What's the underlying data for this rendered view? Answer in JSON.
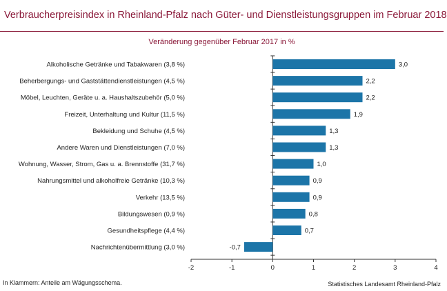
{
  "header": {
    "title": "Verbraucherpreisindex in Rheinland-Pfalz nach Güter- und Dienstleistungsgruppen im Februar 2018"
  },
  "footer": {
    "note": "In Klammern: Anteile am Wägungsschema.",
    "source": "Statistisches Landesamt Rheinland-Pfalz"
  },
  "colors": {
    "bar": "#1c75a8",
    "accent": "#8b1a3a"
  },
  "chart_data": {
    "type": "bar",
    "orientation": "horizontal",
    "subtitle": "Veränderung gegenüber Februar 2017 in %",
    "categories": [
      "Alkoholische Getränke und Tabakwaren (3,8 %)",
      "Beherbergungs- und Gaststättendienstleistungen (4,5 %)",
      "Möbel, Leuchten, Geräte u. a. Haushaltszubehör  (5,0 %)",
      "Freizeit, Unterhaltung und Kultur (11,5 %)",
      "Bekleidung und Schuhe (4,5 %)",
      "Andere Waren und Dienstleistungen (7,0 %)",
      "Wohnung, Wasser, Strom, Gas u. a. Brennstoffe (31,7 %)",
      "Nahrungsmittel und alkoholfreie Getränke (10,3 %)",
      "Verkehr (13,5 %)",
      "Bildungswesen (0,9 %)",
      "Gesundheitspflege (4,4 %)",
      "Nachrichtenübermittlung (3,0 %)"
    ],
    "values": [
      3.0,
      2.2,
      2.2,
      1.9,
      1.3,
      1.3,
      1.0,
      0.9,
      0.9,
      0.8,
      0.7,
      -0.7
    ],
    "value_labels": [
      "3,0",
      "2,2",
      "2,2",
      "1,9",
      "1,3",
      "1,3",
      "1,0",
      "0,9",
      "0,9",
      "0,8",
      "0,7",
      "-0,7"
    ],
    "xlim": [
      -2,
      4
    ],
    "xticks": [
      "-2",
      "-1",
      "0",
      "1",
      "2",
      "3",
      "4"
    ],
    "grid": false,
    "legend": "none"
  }
}
